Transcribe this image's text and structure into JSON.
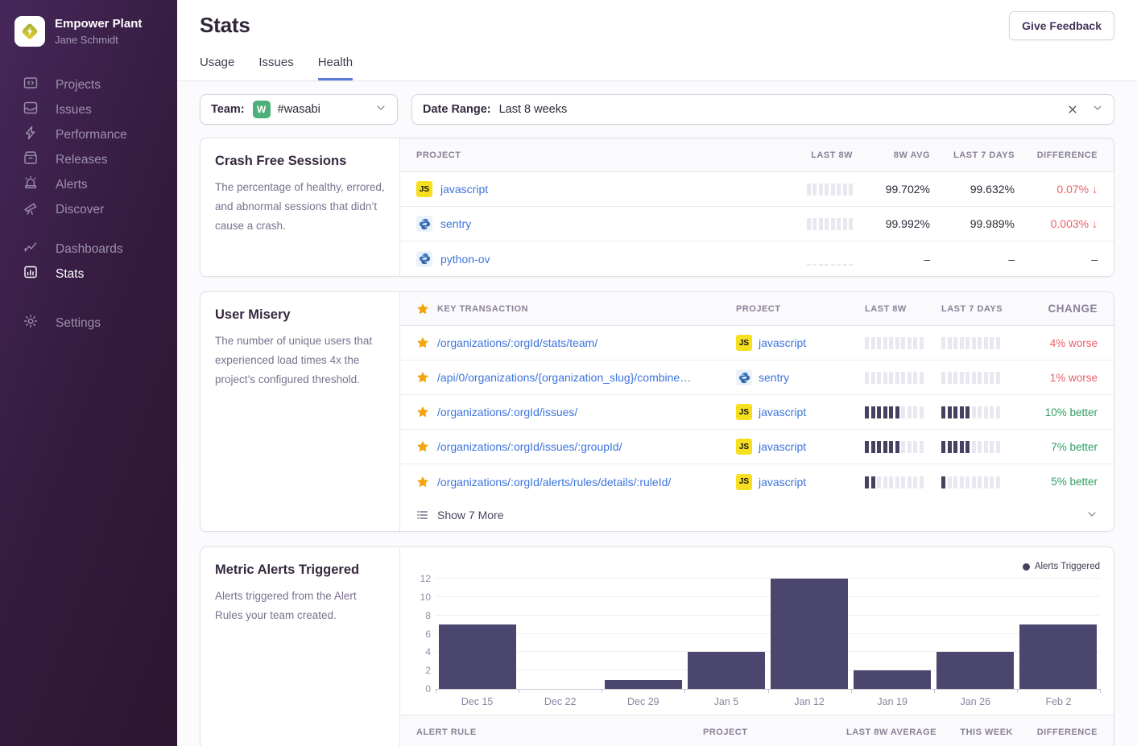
{
  "sidebar": {
    "org_name": "Empower Plant",
    "user_name": "Jane Schmidt",
    "groups": [
      [
        {
          "label": "Projects",
          "icon": "projects-icon"
        },
        {
          "label": "Issues",
          "icon": "issues-icon"
        },
        {
          "label": "Performance",
          "icon": "performance-icon"
        },
        {
          "label": "Releases",
          "icon": "releases-icon"
        },
        {
          "label": "Alerts",
          "icon": "alerts-icon"
        },
        {
          "label": "Discover",
          "icon": "discover-icon"
        }
      ],
      [
        {
          "label": "Dashboards",
          "icon": "dashboards-icon"
        },
        {
          "label": "Stats",
          "icon": "stats-icon",
          "active": true
        }
      ],
      [
        {
          "label": "Settings",
          "icon": "settings-icon"
        }
      ]
    ]
  },
  "header": {
    "title": "Stats",
    "feedback_button": "Give Feedback",
    "tabs": [
      {
        "label": "Usage",
        "active": false
      },
      {
        "label": "Issues",
        "active": false
      },
      {
        "label": "Health",
        "active": true
      }
    ]
  },
  "filters": {
    "team_label": "Team:",
    "team_avatar_letter": "W",
    "team_value": "#wasabi",
    "date_label": "Date Range:",
    "date_value": "Last 8 weeks"
  },
  "platform_badges": {
    "javascript": "JS"
  },
  "crash_free": {
    "title": "Crash Free Sessions",
    "description": "The percentage of healthy, errored, and abnormal sessions that didn’t cause a crash.",
    "columns": [
      "PROJECT",
      "LAST 8W",
      "8W AVG",
      "LAST 7 DAYS",
      "DIFFERENCE"
    ],
    "rows": [
      {
        "project": "javascript",
        "platform": "javascript",
        "spark": [
          0,
          0,
          0,
          0,
          0,
          0,
          0,
          0
        ],
        "avg": "99.702%",
        "last7": "99.632%",
        "diff": "0.07%",
        "arrow": "↓",
        "diff_color": "red"
      },
      {
        "project": "sentry",
        "platform": "python",
        "spark": [
          0,
          0,
          0,
          0,
          0,
          0,
          0,
          0
        ],
        "avg": "99.992%",
        "last7": "99.989%",
        "diff": "0.003%",
        "arrow": "↓",
        "diff_color": "red"
      },
      {
        "project": "python-ov",
        "platform": "python",
        "spark": "dashes",
        "avg": "–",
        "last7": "–",
        "diff": "–",
        "arrow": "",
        "diff_color": ""
      }
    ]
  },
  "user_misery": {
    "title": "User Misery",
    "description": "The number of unique users that experienced load times 4x the project’s configured threshold.",
    "columns": [
      "KEY TRANSACTION",
      "PROJECT",
      "LAST 8W",
      "LAST 7 DAYS",
      "CHANGE"
    ],
    "rows": [
      {
        "transaction": "/organizations/:orgId/stats/team/",
        "project": "javascript",
        "platform": "javascript",
        "spark8": [
          0,
          0,
          0,
          0,
          0,
          0,
          0,
          0,
          0,
          0
        ],
        "spark7": [
          0,
          0,
          0,
          0,
          0,
          0,
          0,
          0,
          0,
          0
        ],
        "change": "4% worse",
        "change_color": "red"
      },
      {
        "transaction": "/api/0/organizations/{organization_slug}/combine…",
        "project": "sentry",
        "platform": "python",
        "spark8": [
          0,
          0,
          0,
          0,
          0,
          0,
          0,
          0,
          0,
          0
        ],
        "spark7": [
          0,
          0,
          0,
          0,
          0,
          0,
          0,
          0,
          0,
          0
        ],
        "change": "1% worse",
        "change_color": "red"
      },
      {
        "transaction": "/organizations/:orgId/issues/",
        "project": "javascript",
        "platform": "javascript",
        "spark8": [
          1,
          1,
          1,
          1,
          1,
          1,
          0,
          0,
          0,
          0
        ],
        "spark7": [
          1,
          1,
          1,
          1,
          1,
          0,
          0,
          0,
          0,
          0
        ],
        "change": "10% better",
        "change_color": "green"
      },
      {
        "transaction": "/organizations/:orgId/issues/:groupId/",
        "project": "javascript",
        "platform": "javascript",
        "spark8": [
          1,
          1,
          1,
          1,
          1,
          1,
          0,
          0,
          0,
          0
        ],
        "spark7": [
          1,
          1,
          1,
          1,
          1,
          0,
          0,
          0,
          0,
          0
        ],
        "change": "7% better",
        "change_color": "green"
      },
      {
        "transaction": "/organizations/:orgId/alerts/rules/details/:ruleId/",
        "project": "javascript",
        "platform": "javascript",
        "spark8": [
          1,
          1,
          0,
          0,
          0,
          0,
          0,
          0,
          0,
          0
        ],
        "spark7": [
          1,
          0,
          0,
          0,
          0,
          0,
          0,
          0,
          0,
          0
        ],
        "change": "5% better",
        "change_color": "green"
      }
    ],
    "show_more": "Show 7 More"
  },
  "metric_alerts": {
    "title": "Metric Alerts Triggered",
    "description": "Alerts triggered from the Alert Rules your team created.",
    "table_columns": [
      "ALERT RULE",
      "PROJECT",
      "LAST 8W AVERAGE",
      "THIS WEEK",
      "DIFFERENCE"
    ]
  },
  "chart_data": {
    "type": "bar",
    "categories": [
      "Dec 15",
      "Dec 22",
      "Dec 29",
      "Jan 5",
      "Jan 12",
      "Jan 19",
      "Jan 26",
      "Feb 2"
    ],
    "values": [
      7,
      0,
      1,
      4,
      12,
      2,
      4,
      7
    ],
    "series_name": "Alerts Triggered",
    "title": "Metric Alerts Triggered",
    "xlabel": "",
    "ylabel": "",
    "ylim": [
      0,
      12
    ],
    "yticks": [
      0,
      2,
      4,
      6,
      8,
      10,
      12
    ],
    "grid": true,
    "legend_position": "top-right",
    "bar_color": "#4b466d"
  },
  "colors": {
    "link_blue": "#3c74dd",
    "negative_red": "#ee5e64",
    "positive_green": "#2f9e63",
    "bar_dark": "#4b466d",
    "bar_light": "#e9e7ef",
    "star_gold": "#f2a50f",
    "js_yellow": "#f6df1e",
    "team_avatar_green": "#4db07b",
    "tab_underline": "#5a7bd4"
  }
}
